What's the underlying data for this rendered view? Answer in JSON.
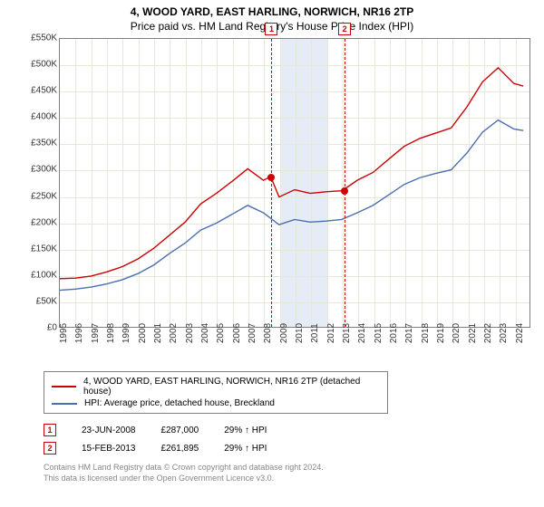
{
  "title_line1": "4, WOOD YARD, EAST HARLING, NORWICH, NR16 2TP",
  "title_line2": "Price paid vs. HM Land Registry's House Price Index (HPI)",
  "chart": {
    "type": "line",
    "background_color": "#ffffff",
    "grid_color": "#e8e8d8",
    "border_color": "#808080",
    "xlim": [
      1995,
      2025
    ],
    "ylim": [
      0,
      550000
    ],
    "ytick_step": 50000,
    "ytick_labels": [
      "£0",
      "£50K",
      "£100K",
      "£150K",
      "£200K",
      "£250K",
      "£300K",
      "£350K",
      "£400K",
      "£450K",
      "£500K",
      "£550K"
    ],
    "ytick_fontsize": 10,
    "xtick_labels": [
      "1995",
      "1996",
      "1997",
      "1998",
      "1999",
      "2000",
      "2001",
      "2002",
      "2003",
      "2004",
      "2005",
      "2006",
      "2007",
      "2008",
      "2009",
      "2010",
      "2011",
      "2012",
      "2013",
      "2014",
      "2015",
      "2016",
      "2017",
      "2018",
      "2019",
      "2020",
      "2021",
      "2022",
      "2023",
      "2024"
    ],
    "xtick_fontsize": 10,
    "shade_band": {
      "x_start": 2009,
      "x_end": 2012,
      "color": "#e6ecf5"
    },
    "line_width": 1.4,
    "series": [
      {
        "name": "property",
        "color": "#cc0000",
        "x": [
          1995,
          1996,
          1997,
          1998,
          1999,
          2000,
          2001,
          2002,
          2003,
          2004,
          2005,
          2006,
          2007,
          2008,
          2008.47,
          2009,
          2010,
          2011,
          2012,
          2013,
          2013.12,
          2014,
          2015,
          2016,
          2017,
          2018,
          2019,
          2020,
          2021,
          2022,
          2023,
          2024,
          2024.6
        ],
        "y": [
          92000,
          93000,
          97000,
          105000,
          115000,
          130000,
          150000,
          175000,
          200000,
          235000,
          255000,
          278000,
          302000,
          280000,
          287000,
          248000,
          262000,
          255000,
          258000,
          260000,
          261895,
          280000,
          295000,
          320000,
          345000,
          360000,
          370000,
          380000,
          420000,
          468000,
          495000,
          465000,
          460000
        ]
      },
      {
        "name": "hpi",
        "color": "#4a6fb0",
        "x": [
          1995,
          1996,
          1997,
          1998,
          1999,
          2000,
          2001,
          2002,
          2003,
          2004,
          2005,
          2006,
          2007,
          2008,
          2009,
          2010,
          2011,
          2012,
          2013,
          2014,
          2015,
          2016,
          2017,
          2018,
          2019,
          2020,
          2021,
          2022,
          2023,
          2024,
          2024.6
        ],
        "y": [
          70000,
          72000,
          76000,
          82000,
          90000,
          102000,
          118000,
          140000,
          160000,
          185000,
          198000,
          215000,
          232000,
          218000,
          195000,
          205000,
          200000,
          202000,
          205000,
          218000,
          232000,
          252000,
          272000,
          285000,
          293000,
          300000,
          332000,
          372000,
          395000,
          378000,
          375000
        ]
      }
    ],
    "sale_markers": [
      {
        "label": "1",
        "x": 2008.47,
        "y": 287000
      },
      {
        "label": "2",
        "x": 2013.12,
        "y": 261895
      }
    ],
    "marker_box_color": "#cc0000",
    "marker_vline_color": "#cc0000",
    "marker_vline_dash": "dashed"
  },
  "legend": {
    "border_color": "#808080",
    "label_fontsize": 10,
    "items": [
      {
        "color": "#cc0000",
        "label": "4, WOOD YARD, EAST HARLING, NORWICH, NR16 2TP (detached house)"
      },
      {
        "color": "#4a6fb0",
        "label": "HPI: Average price, detached house, Breckland"
      }
    ]
  },
  "sales_table": {
    "fontsize": 10,
    "rows": [
      {
        "marker": "1",
        "date": "23-JUN-2008",
        "price": "£287,000",
        "delta": "29% ↑ HPI"
      },
      {
        "marker": "2",
        "date": "15-FEB-2013",
        "price": "£261,895",
        "delta": "29% ↑ HPI"
      }
    ]
  },
  "footer": {
    "line1": "Contains HM Land Registry data © Crown copyright and database right 2024.",
    "line2": "This data is licensed under the Open Government Licence v3.0.",
    "color": "#888888",
    "fontsize": 9
  }
}
